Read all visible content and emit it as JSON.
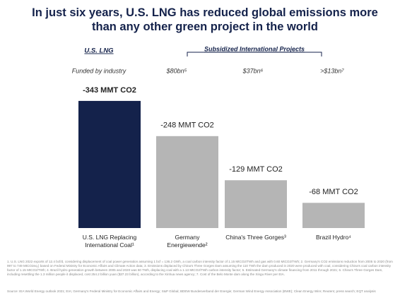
{
  "chart_data": {
    "type": "bar",
    "title": "In just six years, U.S. LNG has reduced global emissions more than any other green project in the world",
    "group_labels": [
      "U.S. LNG",
      "Subsidized International Projects"
    ],
    "funding_labels": [
      "Funded by industry",
      "$80bn⁵",
      "$37bn⁶",
      ">$13bn⁷"
    ],
    "categories": [
      "U.S. LNG Replacing International Coal¹",
      "Germany Energiewende²",
      "China's Three Gorges³",
      "Brazil Hydro⁴"
    ],
    "values": [
      -343,
      -248,
      -129,
      -68
    ],
    "value_labels": [
      "-343 MMT CO2",
      "-248 MMT CO2",
      "-129 MMT CO2",
      "-68 MMT CO2"
    ],
    "colors": [
      "#14224b",
      "#b5b5b5",
      "#b5b5b5",
      "#b5b5b5"
    ],
    "ylim": [
      0,
      -400
    ],
    "footnotes": "1. U.S. LNG 2022 exports of 12.4 bcf/d, considering displacement of coal power generation assuming 1 bcf = 136.2 GWh, a coal carbon intensity factor of 1.15 MtCO2/TWh and gas with 0.60 MtCO2/TWh; 2. Germany's CO2 emissions reduction from 2005 to 2020 (from 997 to 749 MtCO2eq.) based on Federal Ministry for Economic Affairs and Climate Action data; 3. Emissions displaced by China's Three Gorges Dam assuming the 110 TWh the dam produced in 2020 were produced with coal, considering China's coal carbon intensity factor of 1.15 MtCO2/TWh; 4. Brazil hydro generation growth between 2005 and 2020 was 60 TWh, displacing coal with a 1.13 MtCO2/TWh carbon intensity factor; 5. Estimated Germany's climate financing from 2011 through 2021; 6. China's Three Gorges Dam, including resettling the 1.3 million people it displaced, cost 254.2 billion yuan ($37.23 billion), according to the Xinhua news agency; 7. Cost of the Belo Monte dam along the Xingu River per EIA.",
    "sources": "Source: IEA World Energy outlook 2021; EIA; Germany's Federal Ministry for Economic Affairs and Energy; S&P Global; BDEW Bundesverband der Energie; German Wind Energy Association (BWE); Clean Energy Wire; Reuters; press search; EQT analysis"
  }
}
